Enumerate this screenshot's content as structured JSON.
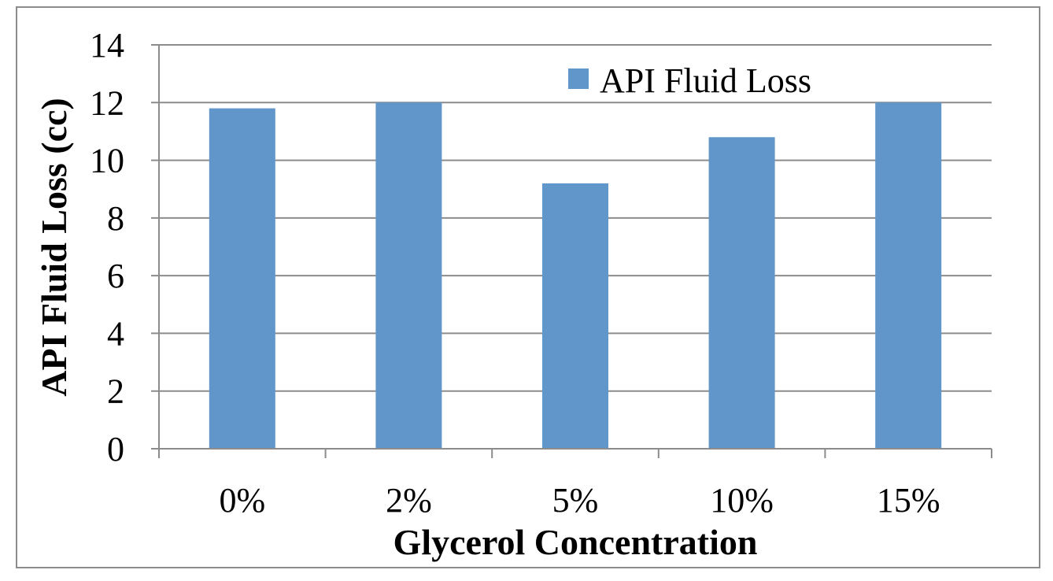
{
  "colors": {
    "bar": "#6096c9",
    "grid": "#8c8c8c",
    "axis": "#8c8c8c",
    "frame": "#8c8c8c"
  },
  "chart_data": {
    "type": "bar",
    "categories": [
      "0%",
      "2%",
      "5%",
      "10%",
      "15%"
    ],
    "series": [
      {
        "name": "API Fluid Loss",
        "values": [
          11.8,
          12.0,
          9.2,
          10.8,
          12.0
        ]
      }
    ],
    "title": "",
    "xlabel": "Glycerol Concentration",
    "ylabel": "API Fluid Loss (cc)",
    "ylim": [
      0,
      14
    ],
    "yticks": [
      "0",
      "2",
      "4",
      "6",
      "8",
      "10",
      "12",
      "14"
    ],
    "grid": true,
    "legend": "top-right"
  }
}
